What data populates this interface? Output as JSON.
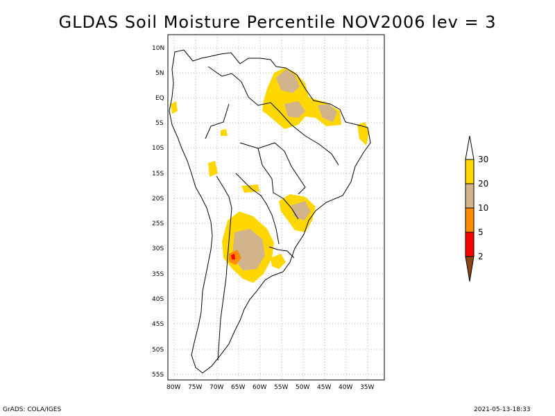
{
  "title": "GLDAS Soil Moisture Percentile NOV2006 lev = 3",
  "footer": {
    "left": "GrADS: COLA/IGES",
    "right": "2021-05-13-18:33"
  },
  "lat_labels": [
    "10N",
    "5N",
    "EQ",
    "5S",
    "10S",
    "15S",
    "20S",
    "25S",
    "30S",
    "35S",
    "40S",
    "45S",
    "50S",
    "55S"
  ],
  "lon_labels": [
    "80W",
    "75W",
    "70W",
    "65W",
    "60W",
    "55W",
    "50W",
    "45W",
    "40W",
    "35W"
  ],
  "colorbar": {
    "labels": [
      "30",
      "20",
      "10",
      "5",
      "2"
    ],
    "colors": {
      "top_arrow": "#ffffff",
      "c20_30": "#ffd700",
      "c10_20": "#d2b48c",
      "c5_10": "#ff8c00",
      "c2_5": "#ff0000",
      "bottom_arrow": "#8b4513"
    }
  },
  "colors": {
    "coast": "#000000",
    "grid": "#b0b0b0"
  }
}
